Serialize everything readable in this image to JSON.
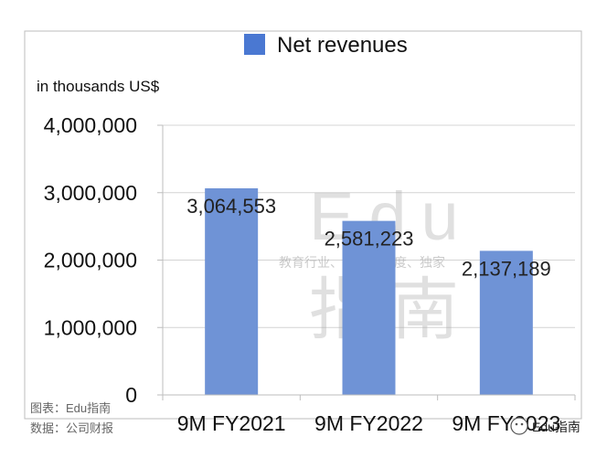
{
  "chart_data": {
    "type": "bar",
    "legend": "Net revenues",
    "unit_label": "in thousands US$",
    "categories": [
      "9M FY2021",
      "9M FY2022",
      "9M FY2023"
    ],
    "series": [
      {
        "name": "Net revenues",
        "values": [
          3064553,
          2581223,
          2137189
        ]
      }
    ],
    "data_labels": [
      "3,064,553",
      "2,581,223",
      "2,137,189"
    ],
    "y_ticks": [
      "0",
      "1,000,000",
      "2,000,000",
      "3,000,000",
      "4,000,000"
    ],
    "ylim": [
      0,
      4000000
    ],
    "grid": true,
    "bar_color": "#6f93d6",
    "legend_color": "#4a78d2"
  },
  "footer": {
    "chart_credit": "图表：Edu指南",
    "data_source": "数据：公司财报"
  },
  "watermark": {
    "big_top": "Edu",
    "tagline": "教育行业、前沿、深度、独家",
    "big_bottom": "指南"
  },
  "brand_badge": "Edu指南"
}
